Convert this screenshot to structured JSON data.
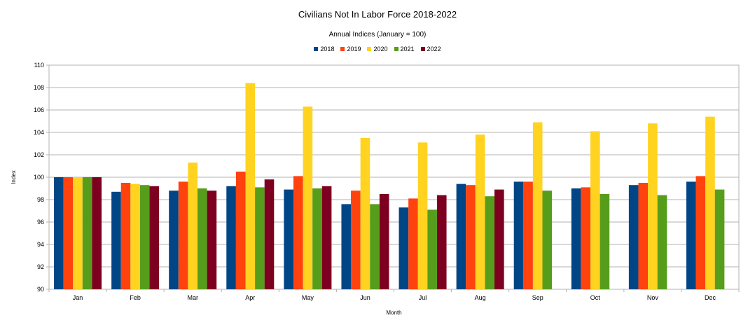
{
  "chart_data": {
    "type": "bar",
    "title": "Civilians Not In Labor Force 2018-2022",
    "subtitle": "Annual Indices (January = 100)",
    "xlabel": "Month",
    "ylabel": "Index",
    "ylim": [
      90,
      110
    ],
    "yticks": [
      "90",
      "92",
      "94",
      "96",
      "98",
      "100",
      "102",
      "104",
      "106",
      "108",
      "110"
    ],
    "grid": true,
    "legend_position": "top-center",
    "categories": [
      "Jan",
      "Feb",
      "Mar",
      "Apr",
      "May",
      "Jun",
      "Jul",
      "Aug",
      "Sep",
      "Oct",
      "Nov",
      "Dec"
    ],
    "series": [
      {
        "name": "2018",
        "color": "#004586",
        "values": [
          100,
          98.7,
          98.8,
          99.2,
          98.9,
          97.6,
          97.3,
          99.4,
          99.6,
          99.0,
          99.3,
          99.6
        ]
      },
      {
        "name": "2019",
        "color": "#ff420e",
        "values": [
          100,
          99.5,
          99.6,
          100.5,
          100.1,
          98.8,
          98.1,
          99.3,
          99.6,
          99.1,
          99.5,
          100.1
        ]
      },
      {
        "name": "2020",
        "color": "#ffd320",
        "values": [
          100,
          99.4,
          101.3,
          108.4,
          106.3,
          103.5,
          103.1,
          103.8,
          104.9,
          104.1,
          104.8,
          105.4
        ]
      },
      {
        "name": "2021",
        "color": "#579d1c",
        "values": [
          100,
          99.3,
          99.0,
          99.1,
          99.0,
          97.6,
          97.1,
          98.3,
          98.8,
          98.5,
          98.4,
          98.9
        ]
      },
      {
        "name": "2022",
        "color": "#7e0021",
        "values": [
          100,
          99.2,
          98.8,
          99.8,
          99.2,
          98.5,
          98.4,
          98.9,
          null,
          null,
          null,
          null
        ]
      }
    ]
  }
}
